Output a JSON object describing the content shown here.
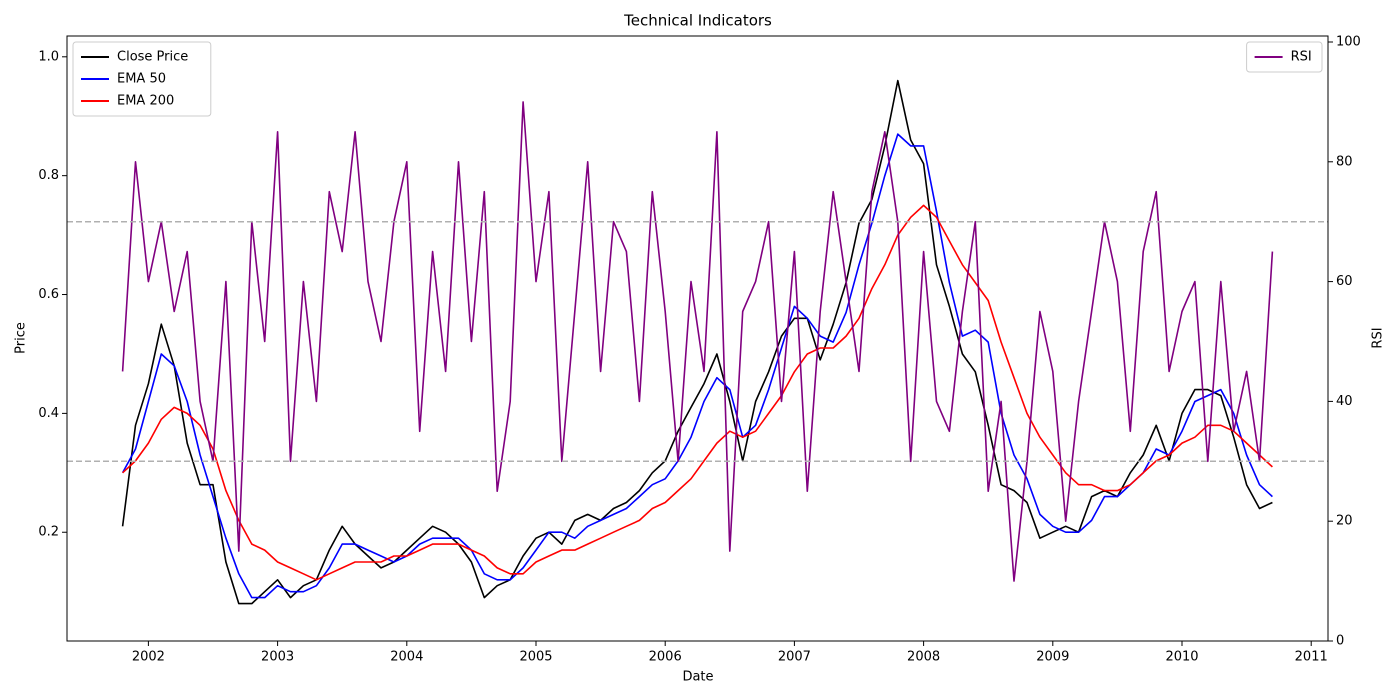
{
  "chart_data": {
    "type": "line",
    "title": "Technical Indicators",
    "x_label": "Date",
    "y_label": "Price",
    "y2_label": "RSI",
    "x": [
      2001.8,
      2001.9,
      2002.0,
      2002.1,
      2002.2,
      2002.3,
      2002.4,
      2002.5,
      2002.6,
      2002.7,
      2002.8,
      2002.9,
      2003.0,
      2003.1,
      2003.2,
      2003.3,
      2003.4,
      2003.5,
      2003.6,
      2003.7,
      2003.8,
      2003.9,
      2004.0,
      2004.1,
      2004.2,
      2004.3,
      2004.4,
      2004.5,
      2004.6,
      2004.7,
      2004.8,
      2004.9,
      2005.0,
      2005.1,
      2005.2,
      2005.3,
      2005.4,
      2005.5,
      2005.6,
      2005.7,
      2005.8,
      2005.9,
      2006.0,
      2006.1,
      2006.2,
      2006.3,
      2006.4,
      2006.5,
      2006.6,
      2006.7,
      2006.8,
      2006.9,
      2007.0,
      2007.1,
      2007.2,
      2007.3,
      2007.4,
      2007.5,
      2007.6,
      2007.7,
      2007.8,
      2007.9,
      2008.0,
      2008.1,
      2008.2,
      2008.3,
      2008.4,
      2008.5,
      2008.6,
      2008.7,
      2008.8,
      2008.9,
      2009.0,
      2009.1,
      2009.2,
      2009.3,
      2009.4,
      2009.5,
      2009.6,
      2009.7,
      2009.8,
      2009.9,
      2010.0,
      2010.1,
      2010.2,
      2010.3,
      2010.4,
      2010.5,
      2010.6,
      2010.7
    ],
    "series": [
      {
        "name": "Close Price",
        "color": "#000000",
        "axis": "y",
        "values": [
          0.21,
          0.38,
          0.45,
          0.55,
          0.48,
          0.35,
          0.28,
          0.28,
          0.15,
          0.08,
          0.08,
          0.1,
          0.12,
          0.09,
          0.11,
          0.12,
          0.17,
          0.21,
          0.18,
          0.16,
          0.14,
          0.15,
          0.17,
          0.19,
          0.21,
          0.2,
          0.18,
          0.15,
          0.09,
          0.11,
          0.12,
          0.16,
          0.19,
          0.2,
          0.18,
          0.22,
          0.23,
          0.22,
          0.24,
          0.25,
          0.27,
          0.3,
          0.32,
          0.37,
          0.41,
          0.45,
          0.5,
          0.42,
          0.32,
          0.42,
          0.47,
          0.53,
          0.56,
          0.56,
          0.49,
          0.55,
          0.62,
          0.72,
          0.76,
          0.85,
          0.96,
          0.86,
          0.82,
          0.65,
          0.58,
          0.5,
          0.47,
          0.38,
          0.28,
          0.27,
          0.25,
          0.19,
          0.2,
          0.21,
          0.2,
          0.26,
          0.27,
          0.26,
          0.3,
          0.33,
          0.38,
          0.32,
          0.4,
          0.44,
          0.44,
          0.43,
          0.36,
          0.28,
          0.24,
          0.25
        ]
      },
      {
        "name": "EMA 50",
        "color": "#0000ff",
        "axis": "y",
        "values": [
          0.3,
          0.34,
          0.42,
          0.5,
          0.48,
          0.42,
          0.33,
          0.26,
          0.19,
          0.13,
          0.09,
          0.09,
          0.11,
          0.1,
          0.1,
          0.11,
          0.14,
          0.18,
          0.18,
          0.17,
          0.16,
          0.15,
          0.16,
          0.18,
          0.19,
          0.19,
          0.19,
          0.17,
          0.13,
          0.12,
          0.12,
          0.14,
          0.17,
          0.2,
          0.2,
          0.19,
          0.21,
          0.22,
          0.23,
          0.24,
          0.26,
          0.28,
          0.29,
          0.32,
          0.36,
          0.42,
          0.46,
          0.44,
          0.36,
          0.38,
          0.44,
          0.51,
          0.58,
          0.56,
          0.53,
          0.52,
          0.57,
          0.65,
          0.72,
          0.8,
          0.87,
          0.85,
          0.85,
          0.74,
          0.62,
          0.53,
          0.54,
          0.52,
          0.4,
          0.33,
          0.29,
          0.23,
          0.21,
          0.2,
          0.2,
          0.22,
          0.26,
          0.26,
          0.28,
          0.3,
          0.34,
          0.33,
          0.37,
          0.42,
          0.43,
          0.44,
          0.4,
          0.33,
          0.28,
          0.26
        ]
      },
      {
        "name": "EMA 200",
        "color": "#ff0000",
        "axis": "y",
        "values": [
          0.3,
          0.32,
          0.35,
          0.39,
          0.41,
          0.4,
          0.38,
          0.34,
          0.27,
          0.22,
          0.18,
          0.17,
          0.15,
          0.14,
          0.13,
          0.12,
          0.13,
          0.14,
          0.15,
          0.15,
          0.15,
          0.16,
          0.16,
          0.17,
          0.18,
          0.18,
          0.18,
          0.17,
          0.16,
          0.14,
          0.13,
          0.13,
          0.15,
          0.16,
          0.17,
          0.17,
          0.18,
          0.19,
          0.2,
          0.21,
          0.22,
          0.24,
          0.25,
          0.27,
          0.29,
          0.32,
          0.35,
          0.37,
          0.36,
          0.37,
          0.4,
          0.43,
          0.47,
          0.5,
          0.51,
          0.51,
          0.53,
          0.56,
          0.61,
          0.65,
          0.7,
          0.73,
          0.75,
          0.73,
          0.69,
          0.65,
          0.62,
          0.59,
          0.52,
          0.46,
          0.4,
          0.36,
          0.33,
          0.3,
          0.28,
          0.28,
          0.27,
          0.27,
          0.28,
          0.3,
          0.32,
          0.33,
          0.35,
          0.36,
          0.38,
          0.38,
          0.37,
          0.35,
          0.33,
          0.31
        ]
      },
      {
        "name": "RSI",
        "color": "#800080",
        "axis": "y2",
        "values": [
          45,
          80,
          60,
          70,
          55,
          65,
          40,
          30,
          60,
          15,
          70,
          50,
          85,
          30,
          60,
          40,
          75,
          65,
          85,
          60,
          50,
          70,
          80,
          35,
          65,
          45,
          80,
          50,
          75,
          25,
          40,
          90,
          60,
          75,
          30,
          55,
          80,
          45,
          70,
          65,
          40,
          75,
          55,
          30,
          60,
          45,
          85,
          15,
          55,
          60,
          70,
          40,
          65,
          25,
          55,
          75,
          60,
          45,
          75,
          85,
          70,
          30,
          65,
          40,
          35,
          55,
          70,
          25,
          40,
          10,
          30,
          55,
          45,
          20,
          40,
          55,
          70,
          60,
          35,
          65,
          75,
          45,
          55,
          60,
          30,
          60,
          35,
          45,
          30,
          65
        ]
      }
    ],
    "reference_lines": [
      70,
      30
    ],
    "reference_color": "#b0b0b0",
    "xlim": [
      2001.37,
      2011.13
    ],
    "xticks": [
      2002,
      2003,
      2004,
      2005,
      2006,
      2007,
      2008,
      2009,
      2010,
      2011
    ],
    "ylim": [
      0.017,
      1.035
    ],
    "yticks": [
      0.2,
      0.4,
      0.6,
      0.8,
      {
        "value": 1,
        "label": "1.0"
      }
    ],
    "y2lim": [
      0,
      101
    ],
    "y2ticks": [
      0,
      20,
      40,
      60,
      80,
      100
    ],
    "legend": "upper left",
    "legend2": "upper right"
  }
}
